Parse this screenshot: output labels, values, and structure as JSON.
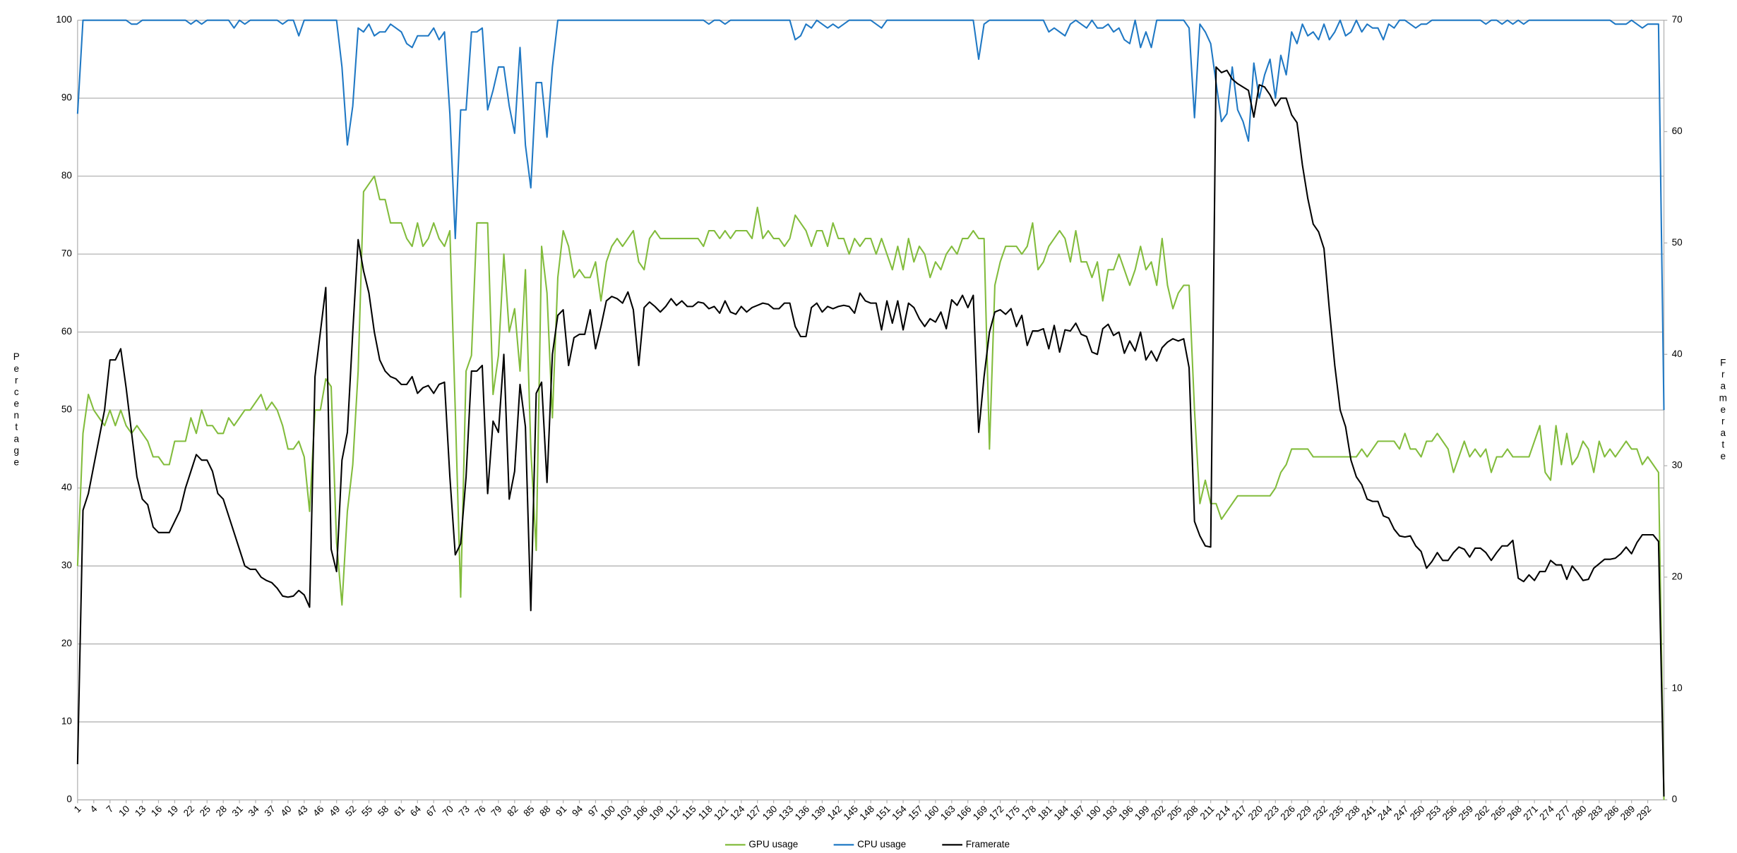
{
  "chart_data": {
    "type": "line",
    "categories": [
      1,
      null,
      null,
      4,
      null,
      null,
      7,
      null,
      null,
      10,
      null,
      null,
      13,
      null,
      null,
      16,
      null,
      null,
      19,
      null,
      null,
      22,
      null,
      null,
      25,
      null,
      null,
      28,
      null,
      null,
      31,
      null,
      null,
      34,
      null,
      null,
      37,
      null,
      null,
      40,
      null,
      null,
      43,
      null,
      null,
      46,
      null,
      null,
      49,
      null,
      null,
      52,
      null,
      null,
      55,
      null,
      null,
      58,
      null,
      null,
      61,
      null,
      null,
      64,
      null,
      null,
      67,
      null,
      null,
      70,
      null,
      null,
      73,
      null,
      null,
      76,
      null,
      null,
      79,
      null,
      null,
      82,
      null,
      null,
      85,
      null,
      null,
      88,
      null,
      null,
      91,
      null,
      null,
      94,
      null,
      null,
      97,
      null,
      null,
      100,
      null,
      null,
      103,
      null,
      null,
      106,
      null,
      null,
      109,
      null,
      null,
      112,
      null,
      null,
      115,
      null,
      null,
      118,
      null,
      null,
      121,
      null,
      null,
      124,
      null,
      null,
      127,
      null,
      null,
      130,
      null,
      null,
      133,
      null,
      null,
      136,
      null,
      null,
      139,
      null,
      null,
      142,
      null,
      null,
      145,
      null,
      null,
      148,
      null,
      null,
      151,
      null,
      null,
      154,
      null,
      null,
      157,
      null,
      null,
      160,
      null,
      null,
      163,
      null,
      null,
      166,
      null,
      null,
      169,
      null,
      null,
      172,
      null,
      null,
      175,
      null,
      null,
      178,
      null,
      null,
      181,
      null,
      null,
      184,
      null,
      null,
      187,
      null,
      null,
      190,
      null,
      null,
      193,
      null,
      null,
      196,
      null,
      null,
      199,
      null,
      null,
      202,
      null,
      null,
      205,
      null,
      null,
      208,
      null,
      null,
      211,
      null,
      null,
      214,
      null,
      null,
      217,
      null,
      null,
      220,
      null,
      null,
      223,
      null,
      null,
      226,
      null,
      null,
      229,
      null,
      null,
      232,
      null,
      null,
      235,
      null,
      null,
      238,
      null,
      null,
      241,
      null,
      null,
      244,
      null,
      null,
      247,
      null,
      null,
      250,
      null,
      null,
      253,
      null,
      null,
      256,
      null,
      null,
      259,
      null,
      null,
      262,
      null,
      null,
      265,
      null,
      null,
      268,
      null,
      null,
      271,
      null,
      null,
      274,
      null,
      null,
      277,
      null,
      null,
      280,
      null,
      null,
      283,
      null,
      null,
      286,
      null,
      null,
      289,
      null,
      null,
      292,
      null,
      null,
      null
    ],
    "series": [
      {
        "name": "GPU usage",
        "color": "#82bc3c",
        "values": [
          30,
          47,
          52,
          50,
          49,
          48,
          50,
          48,
          50,
          48,
          47,
          48,
          47,
          46,
          44,
          44,
          43,
          43,
          46,
          46,
          46,
          49,
          47,
          50,
          48,
          48,
          47,
          47,
          49,
          48,
          49,
          50,
          50,
          51,
          52,
          50,
          51,
          50,
          48,
          45,
          45,
          46,
          44,
          37,
          50,
          50,
          54,
          53,
          33,
          25,
          37,
          43,
          55,
          78,
          79,
          80,
          77,
          77,
          74,
          74,
          74,
          72,
          71,
          74,
          71,
          72,
          74,
          72,
          71,
          73,
          50,
          26,
          55,
          57,
          74,
          74,
          74,
          52,
          57,
          70,
          60,
          63,
          55,
          68,
          45,
          32,
          71,
          65,
          49,
          67,
          73,
          71,
          67,
          68,
          67,
          67,
          69,
          64,
          69,
          71,
          72,
          71,
          72,
          73,
          69,
          68,
          72,
          73,
          72,
          72,
          72,
          72,
          72,
          72,
          72,
          72,
          71,
          73,
          73,
          72,
          73,
          72,
          73,
          73,
          73,
          72,
          76,
          72,
          73,
          72,
          72,
          71,
          72,
          75,
          74,
          73,
          71,
          73,
          73,
          71,
          74,
          72,
          72,
          70,
          72,
          71,
          72,
          72,
          70,
          72,
          70,
          68,
          71,
          68,
          72,
          69,
          71,
          70,
          67,
          69,
          68,
          70,
          71,
          70,
          72,
          72,
          73,
          72,
          72,
          45,
          66,
          69,
          71,
          71,
          71,
          70,
          71,
          74,
          68,
          69,
          71,
          72,
          73,
          72,
          69,
          73,
          69,
          69,
          67,
          69,
          64,
          68,
          68,
          70,
          68,
          66,
          68,
          71,
          68,
          69,
          66,
          72,
          66,
          63,
          65,
          66,
          66,
          50,
          38,
          41,
          38,
          38,
          36,
          37,
          38,
          39,
          39,
          39,
          39,
          39,
          39,
          39,
          40,
          42,
          43,
          45,
          45,
          45,
          45,
          44,
          44,
          44,
          44,
          44,
          44,
          44,
          44,
          44,
          45,
          44,
          45,
          46,
          46,
          46,
          46,
          45,
          47,
          45,
          45,
          44,
          46,
          46,
          47,
          46,
          45,
          42,
          44,
          46,
          44,
          45,
          44,
          45,
          42,
          44,
          44,
          45,
          44,
          44,
          44,
          44,
          46,
          48,
          42,
          41,
          48,
          43,
          47,
          43,
          44,
          46,
          45,
          42,
          46,
          44,
          45,
          44,
          45,
          46,
          45,
          45,
          43,
          44,
          43,
          42,
          0
        ]
      },
      {
        "name": "CPU usage",
        "color": "#1f78c4",
        "values": [
          88,
          100,
          100,
          100,
          100,
          100,
          100,
          100,
          100,
          100,
          99.5,
          99.5,
          100,
          100,
          100,
          100,
          100,
          100,
          100,
          100,
          100,
          99.5,
          100,
          99.5,
          100,
          100,
          100,
          100,
          100,
          99,
          100,
          99.5,
          100,
          100,
          100,
          100,
          100,
          100,
          99.5,
          100,
          100,
          98,
          100,
          100,
          100,
          100,
          100,
          100,
          100,
          94,
          84,
          89,
          99,
          98.5,
          99.5,
          98,
          98.5,
          98.5,
          99.5,
          99,
          98.5,
          97,
          96.5,
          98,
          98,
          98,
          99,
          97.5,
          98.5,
          88,
          72,
          88.5,
          88.5,
          98.5,
          98.5,
          99,
          88.5,
          91,
          94,
          94,
          89,
          85.5,
          96.5,
          84,
          78.5,
          92,
          92,
          85,
          94,
          100,
          100,
          100,
          100,
          100,
          100,
          100,
          100,
          100,
          100,
          100,
          100,
          100,
          100,
          100,
          100,
          100,
          100,
          100,
          100,
          100,
          100,
          100,
          100,
          100,
          100,
          100,
          100,
          99.5,
          100,
          100,
          99.5,
          100,
          100,
          100,
          100,
          100,
          100,
          100,
          100,
          100,
          100,
          100,
          100,
          97.5,
          98,
          99.5,
          99,
          100,
          99.5,
          99,
          99.5,
          99,
          99.5,
          100,
          100,
          100,
          100,
          100,
          99.5,
          99,
          100,
          100,
          100,
          100,
          100,
          100,
          100,
          100,
          100,
          100,
          100,
          100,
          100,
          100,
          100,
          100,
          100,
          95,
          99.5,
          100,
          100,
          100,
          100,
          100,
          100,
          100,
          100,
          100,
          100,
          100,
          98.5,
          99,
          98.5,
          98,
          99.5,
          100,
          99.5,
          99,
          100,
          99,
          99,
          99.5,
          98.5,
          99,
          97.5,
          97,
          100,
          96.5,
          98.5,
          96.5,
          100,
          100,
          100,
          100,
          100,
          100,
          99,
          87.5,
          99.5,
          98.5,
          97,
          92,
          87,
          88,
          94,
          88.5,
          87,
          84.5,
          94.5,
          90,
          93,
          95,
          90,
          95.5,
          93,
          98.5,
          97,
          99.5,
          98,
          98.5,
          97.5,
          99.5,
          97.5,
          98.5,
          100,
          98,
          98.5,
          100,
          98.5,
          99.5,
          99,
          99,
          97.5,
          99.5,
          99,
          100,
          100,
          99.5,
          99,
          99.5,
          99.5,
          100,
          100,
          100,
          100,
          100,
          100,
          100,
          100,
          100,
          100,
          99.5,
          100,
          100,
          99.5,
          100,
          99.5,
          100,
          99.5,
          100,
          100,
          100,
          100,
          100,
          100,
          100,
          100,
          100,
          100,
          100,
          100,
          100,
          100,
          100,
          100,
          99.5,
          99.5,
          99.5,
          100,
          99.5,
          99,
          99.5,
          99.5,
          99.5,
          50
        ]
      },
      {
        "name": "Framerate",
        "color": "#000000",
        "axis": "y2",
        "values": [
          3.2,
          26,
          27.5,
          30,
          32.5,
          35,
          39.5,
          39.5,
          40.5,
          37,
          33,
          29,
          27,
          26.5,
          24.5,
          24,
          24,
          24,
          25,
          26,
          28,
          29.5,
          31,
          30.5,
          30.5,
          29.5,
          27.5,
          27,
          25.5,
          24,
          22.5,
          21,
          20.7,
          20.7,
          20,
          19.7,
          19.5,
          19,
          18.3,
          18.2,
          18.3,
          18.8,
          18.4,
          17.3,
          38,
          42,
          46,
          22.5,
          20.5,
          30.5,
          33,
          42,
          50.3,
          47.5,
          45.5,
          42,
          39.5,
          38.5,
          38,
          37.8,
          37.3,
          37.3,
          38,
          36.5,
          37,
          37.2,
          36.5,
          37.3,
          37.5,
          29,
          22,
          23,
          29,
          38.5,
          38.5,
          39,
          27.5,
          34,
          33,
          40,
          27,
          29.5,
          37.3,
          33.5,
          17,
          36.5,
          37.5,
          28.5,
          40,
          43.5,
          44,
          39,
          41.5,
          41.8,
          41.8,
          44,
          40.5,
          42.5,
          44.8,
          45.2,
          45,
          44.6,
          45.6,
          44,
          39,
          44.2,
          44.7,
          44.3,
          43.8,
          44.3,
          45,
          44.4,
          44.8,
          44.3,
          44.3,
          44.7,
          44.6,
          44.1,
          44.3,
          43.7,
          44.8,
          43.8,
          43.6,
          44.3,
          43.8,
          44.2,
          44.4,
          44.6,
          44.5,
          44.1,
          44.1,
          44.6,
          44.6,
          42.5,
          41.6,
          41.6,
          44.2,
          44.6,
          43.8,
          44.3,
          44.1,
          44.3,
          44.4,
          44.3,
          43.7,
          45.5,
          44.8,
          44.6,
          44.6,
          42.2,
          44.8,
          42.8,
          44.8,
          42.2,
          44.6,
          44.2,
          43.2,
          42.5,
          43.2,
          42.9,
          43.8,
          42.3,
          44.9,
          44.4,
          45.3,
          44.2,
          45.3,
          33,
          38,
          42,
          43.8,
          44,
          43.6,
          44.1,
          42.5,
          43.5,
          40.8,
          42.1,
          42.1,
          42.3,
          40.5,
          42.6,
          40.2,
          42.2,
          42.1,
          42.8,
          41.8,
          41.6,
          40.2,
          40,
          42.3,
          42.7,
          41.7,
          42,
          40.1,
          41.2,
          40.3,
          42,
          39.5,
          40.3,
          39.4,
          40.6,
          41.1,
          41.4,
          41.2,
          41.4,
          38.8,
          25,
          23.7,
          22.8,
          22.7,
          65.8,
          65.3,
          65.5,
          64.7,
          64.3,
          64,
          63.7,
          61.3,
          64.2,
          64,
          63.3,
          62.3,
          63,
          63,
          61.5,
          60.8,
          57,
          54,
          51.7,
          51,
          49.5,
          44,
          39,
          35,
          33.5,
          30.5,
          29,
          28.3,
          27,
          26.8,
          26.8,
          25.5,
          25.3,
          24.3,
          23.7,
          23.6,
          23.7,
          22.8,
          22.3,
          20.8,
          21.4,
          22.2,
          21.5,
          21.5,
          22.2,
          22.7,
          22.5,
          21.8,
          22.6,
          22.6,
          22.2,
          21.5,
          22.2,
          22.8,
          22.8,
          23.3,
          19.9,
          19.6,
          20.2,
          19.7,
          20.5,
          20.5,
          21.5,
          21.1,
          21.1,
          19.8,
          21,
          20.4,
          19.7,
          19.8,
          20.8,
          21.2,
          21.6,
          21.6,
          21.7,
          22.1,
          22.7,
          22.1,
          23.1,
          23.8,
          23.8,
          23.8,
          23.2,
          0.3
        ]
      }
    ],
    "ylabel": "Percentage",
    "y2label": "Framerate",
    "ylim": [
      0,
      100
    ],
    "yticks": [
      0,
      10,
      20,
      30,
      40,
      50,
      60,
      70,
      80,
      90,
      100
    ],
    "y2lim": [
      0,
      70
    ],
    "y2ticks": [
      0,
      10,
      20,
      30,
      40,
      50,
      60,
      70
    ],
    "grid": true,
    "legend": "bottom"
  }
}
